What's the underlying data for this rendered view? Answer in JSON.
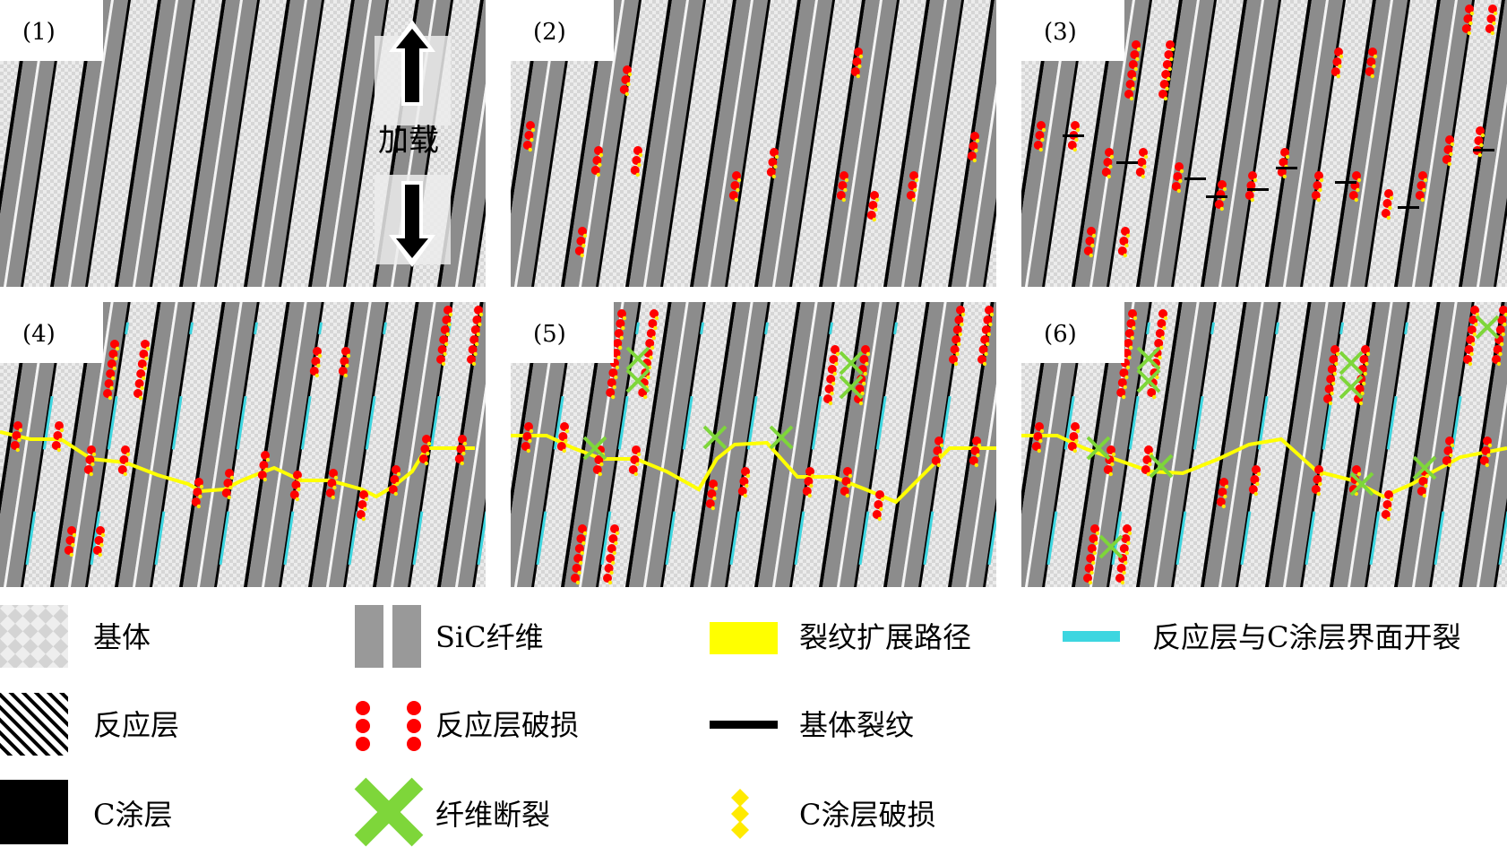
{
  "panels": [
    {
      "label": "(1)"
    },
    {
      "label": "(2)"
    },
    {
      "label": "(3)"
    },
    {
      "label": "(4)"
    },
    {
      "label": "(5)"
    },
    {
      "label": "(6)"
    }
  ],
  "loading_label": "加载",
  "legend": {
    "matrix": "基体",
    "sic_fiber": "SiC纤维",
    "crack_path": "裂纹扩展路径",
    "interface_debond": "反应层与C涂层界面开裂",
    "reaction_layer": "反应层",
    "reaction_layer_damage": "反应层破损",
    "matrix_crack": "基体裂纹",
    "c_coating": "C涂层",
    "fiber_fracture": "纤维断裂",
    "c_coating_damage": "C涂层破损"
  },
  "colors": {
    "fiber": "#8c8c8c",
    "matrix": "#e6e6e6",
    "c_coating": "#000000",
    "reaction_damage": "#ff0000",
    "coating_damage": "#ffea00",
    "crack_path": "#ffff00",
    "interface_debond": "#3dd6e0",
    "fiber_fracture": "#7ed63a"
  }
}
